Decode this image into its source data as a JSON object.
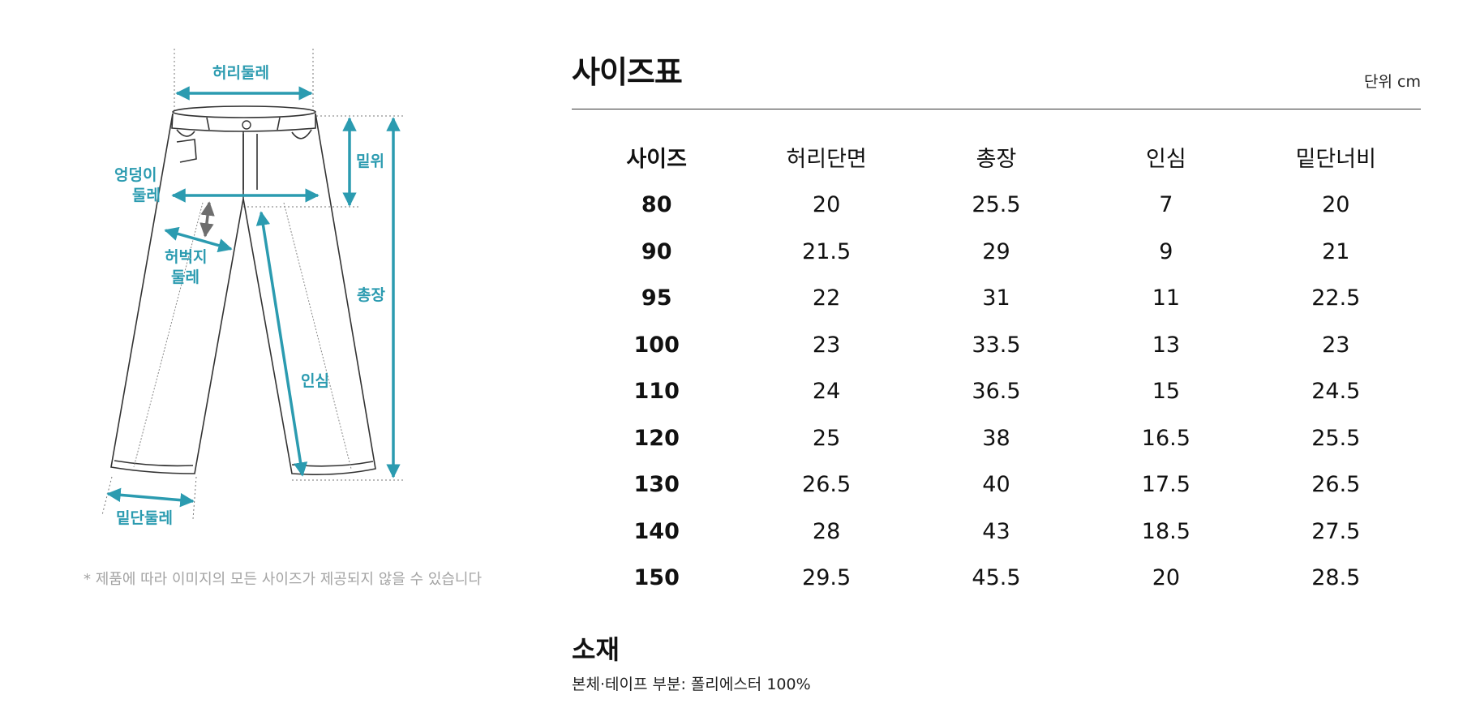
{
  "diagram": {
    "labels": {
      "waist": "허리둘레",
      "hip_line1": "엉덩이",
      "hip_line2": "둘레",
      "rise": "밑위",
      "thigh_line1": "허벅지",
      "thigh_line2": "둘레",
      "length": "총장",
      "inseam": "인심",
      "hem": "밑단둘레"
    },
    "accent_color": "#2b9bb0",
    "note": "* 제품에 따라 이미지의 모든 사이즈가 제공되지 않을 수 있습니다"
  },
  "size_chart": {
    "title": "사이즈표",
    "unit": "단위 cm",
    "headers": [
      "사이즈",
      "허리단면",
      "총장",
      "인심",
      "밑단너비"
    ],
    "rows": [
      [
        "80",
        "20",
        "25.5",
        "7",
        "20"
      ],
      [
        "90",
        "21.5",
        "29",
        "9",
        "21"
      ],
      [
        "95",
        "22",
        "31",
        "11",
        "22.5"
      ],
      [
        "100",
        "23",
        "33.5",
        "13",
        "23"
      ],
      [
        "110",
        "24",
        "36.5",
        "15",
        "24.5"
      ],
      [
        "120",
        "25",
        "38",
        "16.5",
        "25.5"
      ],
      [
        "130",
        "26.5",
        "40",
        "17.5",
        "26.5"
      ],
      [
        "140",
        "28",
        "43",
        "18.5",
        "27.5"
      ],
      [
        "150",
        "29.5",
        "45.5",
        "20",
        "28.5"
      ]
    ]
  },
  "material": {
    "title": "소재",
    "text": "본체·테이프 부분: 폴리에스터 100%"
  }
}
